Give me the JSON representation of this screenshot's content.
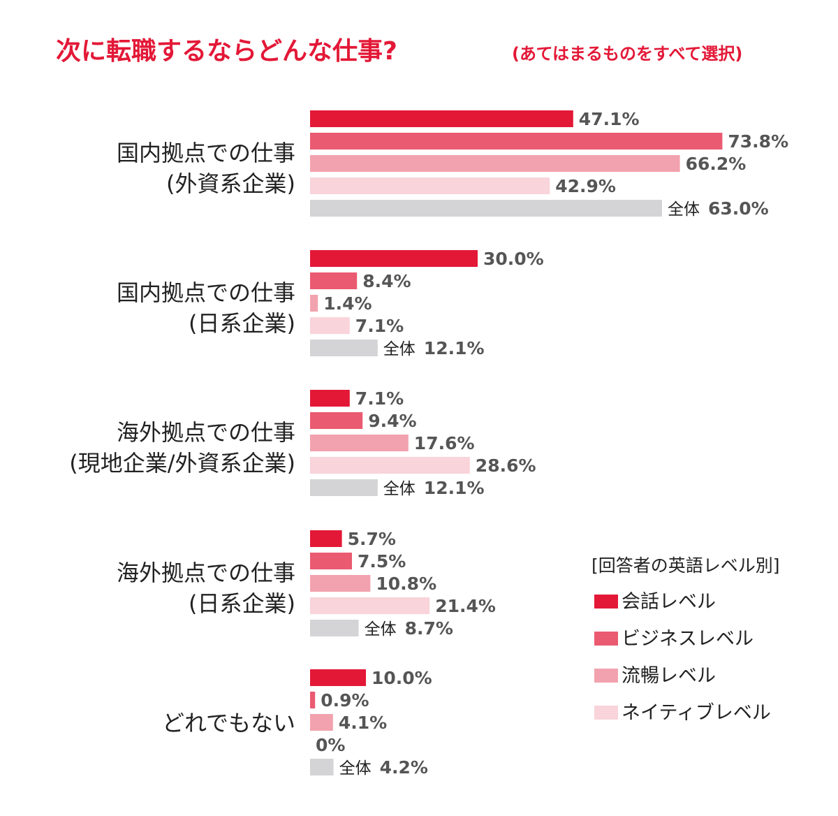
{
  "chart_data": {
    "type": "bar",
    "orientation": "horizontal",
    "title": "次に転職するならどんな仕事?",
    "subtitle": "(あてはまるものをすべて選択)",
    "title_color": "#e31837",
    "xlim": [
      0,
      100
    ],
    "grid": false,
    "categories": [
      {
        "line1": "国内拠点での仕事",
        "line2": "(外資系企業)"
      },
      {
        "line1": "国内拠点での仕事",
        "line2": "(日系企業)"
      },
      {
        "line1": "海外拠点での仕事",
        "line2": "(現地企業/外資系企業)"
      },
      {
        "line1": "海外拠点での仕事",
        "line2": "(日系企業)"
      },
      {
        "line1": "どれでもない",
        "line2": ""
      }
    ],
    "series": [
      {
        "name": "会話レベル",
        "color": "#e31837",
        "values": [
          47.1,
          30.0,
          7.1,
          5.7,
          10.0
        ],
        "labels": [
          "47.1%",
          "30.0%",
          "7.1%",
          "5.7%",
          "10.0%"
        ]
      },
      {
        "name": "ビジネスレベル",
        "color": "#ea5a71",
        "values": [
          73.8,
          8.4,
          9.4,
          7.5,
          0.9
        ],
        "labels": [
          "73.8%",
          "8.4%",
          "9.4%",
          "7.5%",
          "0.9%"
        ]
      },
      {
        "name": "流暢レベル",
        "color": "#f2a2ae",
        "values": [
          66.2,
          1.4,
          17.6,
          10.8,
          4.1
        ],
        "labels": [
          "66.2%",
          "1.4%",
          "17.6%",
          "10.8%",
          "4.1%"
        ]
      },
      {
        "name": "ネイティブレベル",
        "color": "#f9d4da",
        "values": [
          42.9,
          7.1,
          28.6,
          21.4,
          0
        ],
        "labels": [
          "42.9%",
          "7.1%",
          "28.6%",
          "21.4%",
          "0%"
        ]
      },
      {
        "name": "全体",
        "color": "#d4d4d6",
        "values": [
          63.0,
          12.1,
          12.1,
          8.7,
          4.2
        ],
        "labels": [
          "63.0%",
          "12.1%",
          "12.1%",
          "8.7%",
          "4.2%"
        ],
        "label_prefix": "全体"
      }
    ],
    "legend": {
      "title": "[回答者の英語レベル別]",
      "position": "right",
      "items": [
        "会話レベル",
        "ビジネスレベル",
        "流暢レベル",
        "ネイティブレベル"
      ]
    },
    "label_color": "#555555",
    "category_label_color": "#222222"
  }
}
